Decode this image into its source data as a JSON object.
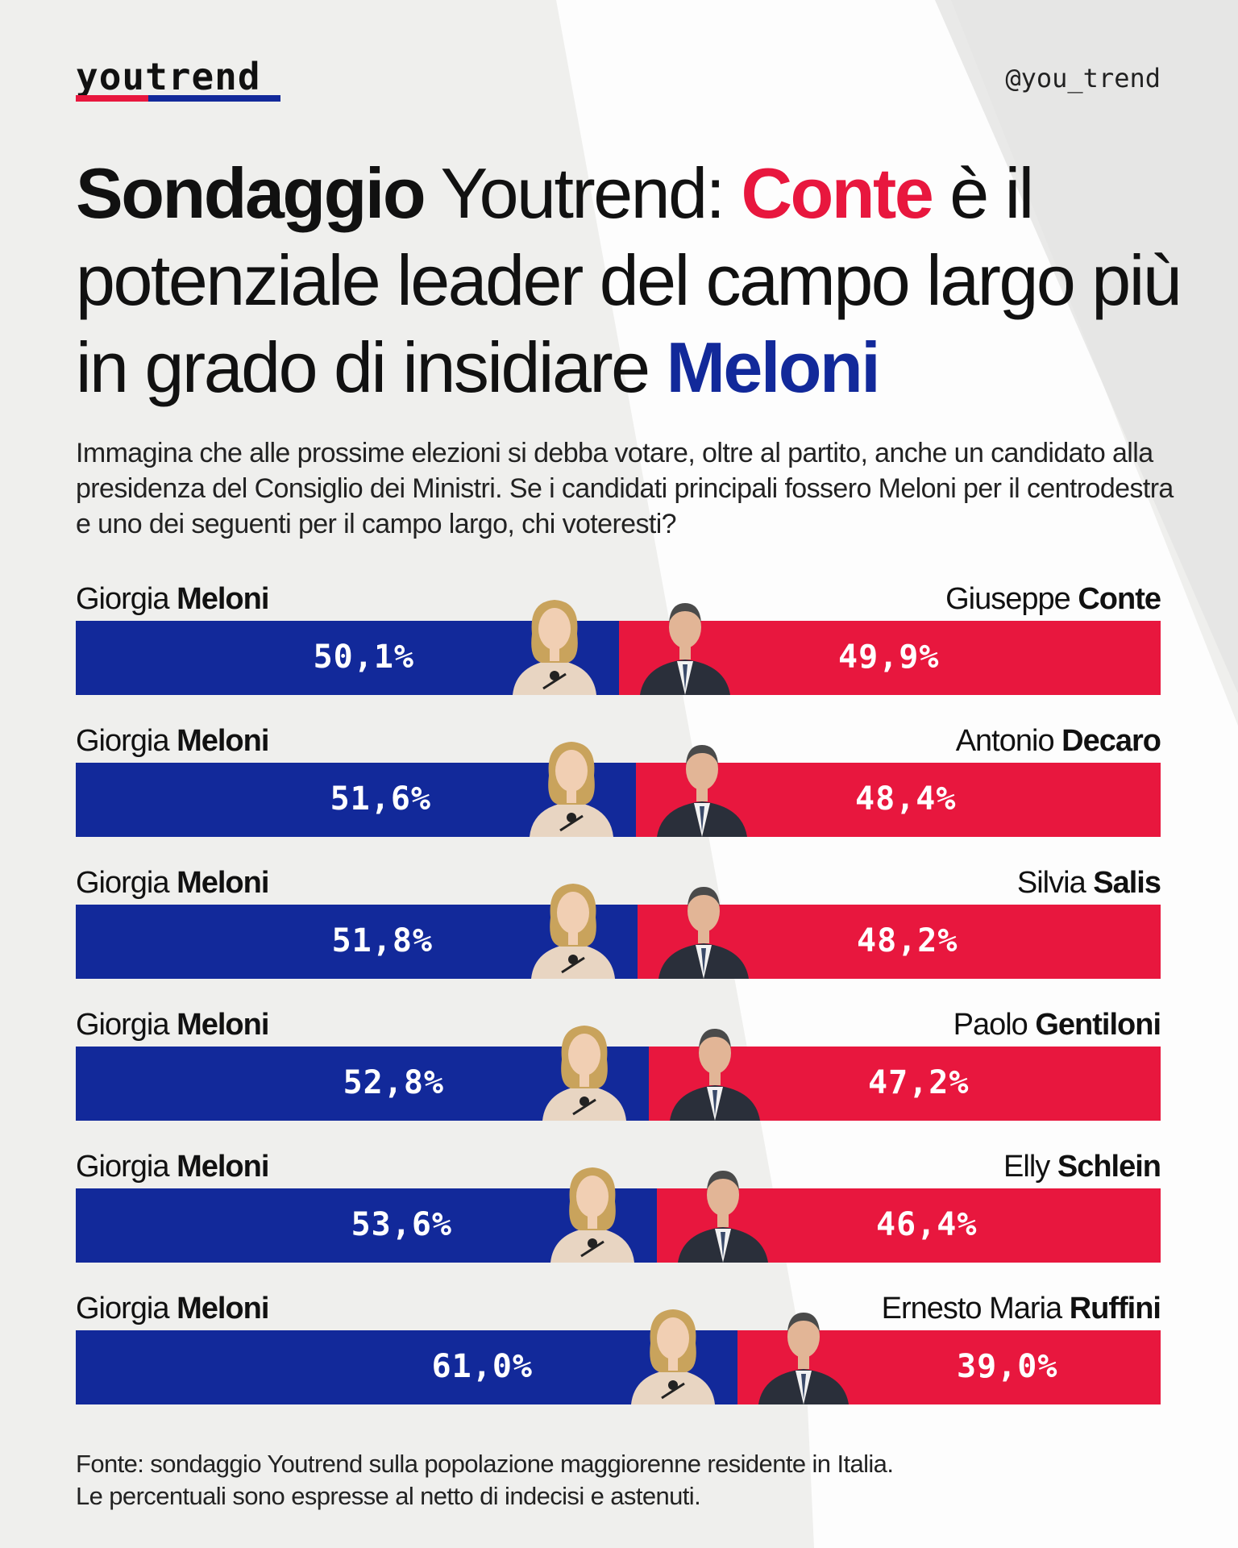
{
  "brand": {
    "logo": "youtrend",
    "handle": "@you_trend",
    "colors": {
      "blue": "#12299a",
      "red": "#e8173e",
      "background": "#efefed"
    }
  },
  "title": {
    "part1": "Sondaggio",
    "part2": " Youtrend: ",
    "part3": "Conte",
    "part4": " è il potenziale leader del campo largo più in grado di insidiare ",
    "part5": "Meloni"
  },
  "question": "Immagina che alle prossime elezioni si debba votare, oltre al partito, anche un candidato alla presidenza del Consiglio dei Ministri. Se i candidati principali fossero Meloni per il centrodestra e uno dei seguenti per il campo largo, chi voteresti?",
  "chart_data": {
    "type": "bar",
    "orientation": "horizontal",
    "stacked": true,
    "unit": "%",
    "matchups": [
      {
        "left_first": "Giorgia",
        "left_last": "Meloni",
        "left_value": 50.1,
        "left_label": "50,1%",
        "right_first": "Giuseppe",
        "right_last": "Conte",
        "right_value": 49.9,
        "right_label": "49,9%"
      },
      {
        "left_first": "Giorgia",
        "left_last": "Meloni",
        "left_value": 51.6,
        "left_label": "51,6%",
        "right_first": "Antonio",
        "right_last": "Decaro",
        "right_value": 48.4,
        "right_label": "48,4%"
      },
      {
        "left_first": "Giorgia",
        "left_last": "Meloni",
        "left_value": 51.8,
        "left_label": "51,8%",
        "right_first": "Silvia",
        "right_last": "Salis",
        "right_value": 48.2,
        "right_label": "48,2%"
      },
      {
        "left_first": "Giorgia",
        "left_last": "Meloni",
        "left_value": 52.8,
        "left_label": "52,8%",
        "right_first": "Paolo",
        "right_last": "Gentiloni",
        "right_value": 47.2,
        "right_label": "47,2%"
      },
      {
        "left_first": "Giorgia",
        "left_last": "Meloni",
        "left_value": 53.6,
        "left_label": "53,6%",
        "right_first": "Elly",
        "right_last": "Schlein",
        "right_value": 46.4,
        "right_label": "46,4%"
      },
      {
        "left_first": "Giorgia",
        "left_last": "Meloni",
        "left_value": 61.0,
        "left_label": "61,0%",
        "right_first": "Ernesto Maria",
        "right_last": "Ruffini",
        "right_value": 39.0,
        "right_label": "39,0%"
      }
    ]
  },
  "footnote": {
    "line1": "Fonte: sondaggio Youtrend sulla popolazione maggiorenne residente in Italia.",
    "line2": "Le percentuali sono espresse al netto di indecisi e astenuti."
  }
}
